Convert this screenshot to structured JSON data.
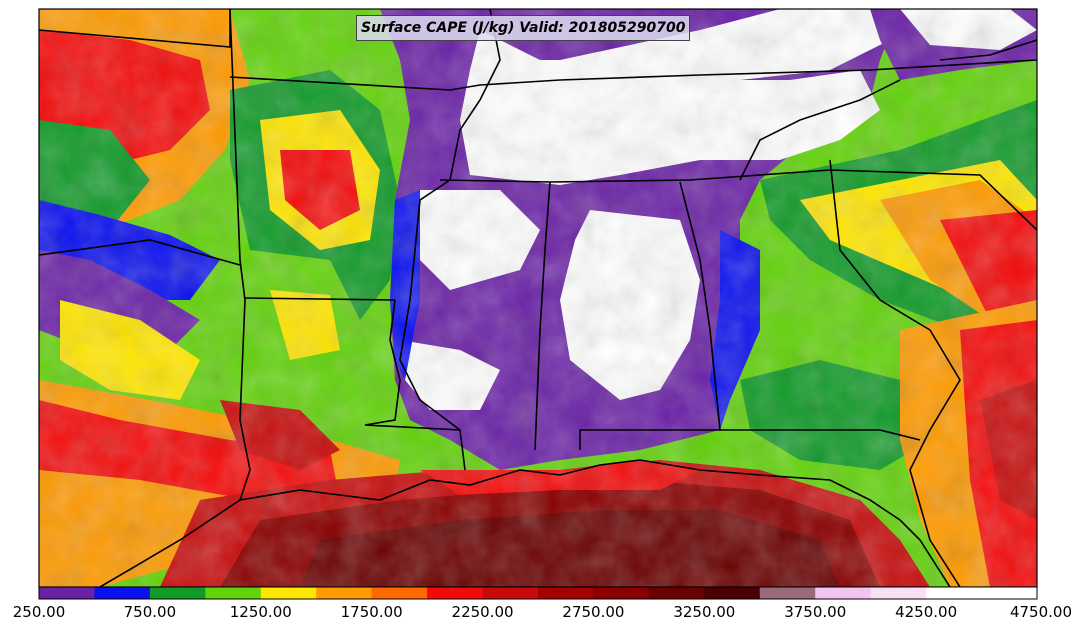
{
  "title": "Surface CAPE (J/kg) Valid: 201805290700",
  "colorbar": {
    "colors": [
      "#6a21a6",
      "#0a10f0",
      "#109a28",
      "#62d20a",
      "#ffe600",
      "#ff9a00",
      "#ff6a00",
      "#f50a0a",
      "#c80a0a",
      "#a50000",
      "#8a0000",
      "#6a0000",
      "#4a0000",
      "#9a6a7a",
      "#f2c4f0",
      "#f8e0f6",
      "#ffffff",
      "#ffffff"
    ],
    "tick_labels": [
      "250.00",
      "750.00",
      "1250.00",
      "1750.00",
      "2250.00",
      "2750.00",
      "3250.00",
      "3750.00",
      "4250.00",
      "4750.00"
    ],
    "min": 250,
    "max": 4750
  }
}
